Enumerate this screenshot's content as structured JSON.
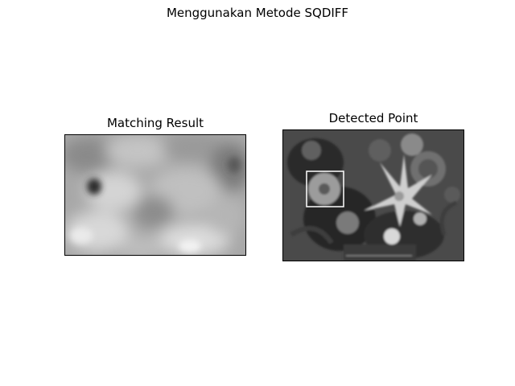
{
  "figure": {
    "suptitle": "Menggunakan Metode SQDIFF"
  },
  "chart_data": [
    {
      "type": "heatmap",
      "title": "Matching Result",
      "colormap": "gray",
      "axes_visible": false,
      "description_of_content": "grayscale template-matching response map with a dark minimum near the left-center"
    },
    {
      "type": "image",
      "title": "Detected Point",
      "colormap": "gray",
      "axes_visible": false,
      "annotation": "white rectangle marking the detected template location"
    }
  ]
}
